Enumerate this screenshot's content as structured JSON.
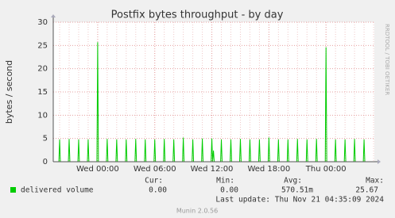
{
  "chart_data": {
    "type": "line",
    "title": "Postfix bytes throughput - by day",
    "y_label": "bytes / second",
    "side_label": "RRDTOOL / TOBI OETIKER",
    "xlim": [
      -4.67,
      29.08
    ],
    "xticks": [
      {
        "value": 0,
        "label": "Wed 00:00"
      },
      {
        "value": 6,
        "label": "Wed 06:00"
      },
      {
        "value": 12,
        "label": "Wed 12:00"
      },
      {
        "value": 18,
        "label": "Wed 18:00"
      },
      {
        "value": 24,
        "label": "Thu 00:00"
      }
    ],
    "ylim": [
      0,
      30
    ],
    "yticks": [
      0,
      5,
      10,
      15,
      20,
      25,
      30
    ],
    "grid": true,
    "x": [
      -4.08,
      -4,
      -3.92,
      -3.08,
      -3,
      -2.92,
      -2.08,
      -2,
      -1.92,
      -1.08,
      -1,
      -0.92,
      -0.08,
      0,
      0.08,
      0.92,
      1,
      1.08,
      1.92,
      2,
      2.08,
      2.92,
      3,
      3.08,
      3.92,
      4,
      4.08,
      4.92,
      5,
      5.08,
      5.92,
      6,
      6.08,
      6.92,
      7,
      7.08,
      7.92,
      8,
      8.08,
      8.92,
      9,
      9.08,
      9.92,
      10,
      10.08,
      10.92,
      11,
      11.08,
      11.92,
      12,
      12.08,
      12.17,
      12.25,
      12.92,
      13,
      13.08,
      13.92,
      14,
      14.08,
      14.92,
      15,
      15.08,
      15.92,
      16,
      16.08,
      16.92,
      17,
      17.08,
      17.92,
      18,
      18.08,
      18.92,
      19,
      19.08,
      19.92,
      20,
      20.08,
      20.92,
      21,
      21.08,
      21.92,
      22,
      22.08,
      22.92,
      23,
      23.08,
      23.92,
      24,
      24.08,
      24.92,
      25,
      25.08,
      25.92,
      26,
      26.08,
      26.92,
      27,
      27.08,
      27.92,
      28,
      28.08
    ],
    "series": [
      {
        "name": "delivered volume",
        "color": "#00cc00",
        "values": [
          0,
          4.8,
          0,
          0,
          4.9,
          0,
          0,
          4.8,
          0,
          0,
          4.8,
          0,
          0,
          25.7,
          0,
          0,
          4.9,
          0,
          0,
          4.8,
          0,
          0,
          4.8,
          0,
          0,
          4.9,
          0,
          0,
          4.8,
          0,
          0,
          4.8,
          0,
          0,
          4.9,
          0,
          0,
          4.8,
          0,
          0,
          5.2,
          0,
          0,
          4.8,
          0,
          0,
          5,
          0,
          0,
          5,
          0,
          2.4,
          0,
          0,
          4.8,
          0,
          0,
          4.8,
          0,
          0,
          4.9,
          0,
          0,
          4.8,
          0,
          0,
          4.8,
          0,
          0,
          5.2,
          0,
          0,
          4.8,
          0,
          0,
          4.8,
          0,
          0,
          4.9,
          0,
          0,
          4.8,
          0,
          0,
          4.9,
          0,
          0,
          24.6,
          0,
          0,
          4.8,
          0,
          0,
          4.8,
          0,
          0,
          4.9,
          0,
          0,
          4.8,
          0
        ],
        "stats": [
          "0.00",
          "0.00",
          "570.51m",
          "25.67"
        ]
      }
    ],
    "stat_headers": [
      "Cur:",
      "Min:",
      "Avg:",
      "Max:"
    ],
    "last_update": "Last update: Thu Nov 21 04:35:09 2024",
    "footer": "Munin 2.0.56"
  }
}
